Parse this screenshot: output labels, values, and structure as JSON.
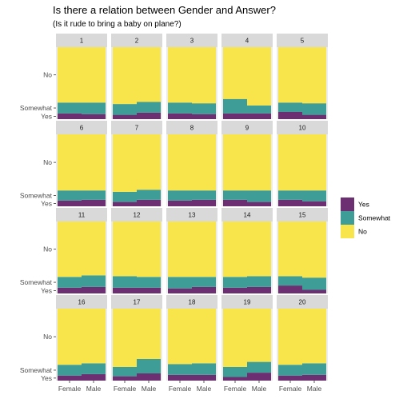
{
  "chart_data": {
    "type": "bar",
    "title": "Is there a relation between Gender and Answer?",
    "subtitle": "(Is it rude to bring a baby on plane?)",
    "categories": [
      "Female",
      "Male"
    ],
    "y_categories": [
      "Yes",
      "Somewhat",
      "No"
    ],
    "y_tick_labels": [
      "No",
      "Somewhat",
      "Yes"
    ],
    "stacked_proportion": true,
    "grid": false,
    "legend_position": "right",
    "colors": {
      "Yes": "#6b2f72",
      "Somewhat": "#3f9d98",
      "No": "#f7e54b"
    },
    "legend": [
      {
        "name": "Yes",
        "color": "#6b2f72"
      },
      {
        "name": "Somewhat",
        "color": "#3f9d98"
      },
      {
        "name": "No",
        "color": "#f7e54b"
      }
    ],
    "facets": [
      {
        "label": "1",
        "female": {
          "yes": 0.08,
          "somewhat": 0.15
        },
        "male": {
          "yes": 0.07,
          "somewhat": 0.16
        }
      },
      {
        "label": "2",
        "female": {
          "yes": 0.06,
          "somewhat": 0.15
        },
        "male": {
          "yes": 0.09,
          "somewhat": 0.15
        }
      },
      {
        "label": "3",
        "female": {
          "yes": 0.08,
          "somewhat": 0.15
        },
        "male": {
          "yes": 0.07,
          "somewhat": 0.15
        }
      },
      {
        "label": "4",
        "female": {
          "yes": 0.08,
          "somewhat": 0.2
        },
        "male": {
          "yes": 0.08,
          "somewhat": 0.11
        }
      },
      {
        "label": "5",
        "female": {
          "yes": 0.1,
          "somewhat": 0.13
        },
        "male": {
          "yes": 0.06,
          "somewhat": 0.16
        }
      },
      {
        "label": "6",
        "female": {
          "yes": 0.08,
          "somewhat": 0.14
        },
        "male": {
          "yes": 0.09,
          "somewhat": 0.13
        }
      },
      {
        "label": "7",
        "female": {
          "yes": 0.06,
          "somewhat": 0.14
        },
        "male": {
          "yes": 0.09,
          "somewhat": 0.14
        }
      },
      {
        "label": "8",
        "female": {
          "yes": 0.08,
          "somewhat": 0.14
        },
        "male": {
          "yes": 0.09,
          "somewhat": 0.13
        }
      },
      {
        "label": "9",
        "female": {
          "yes": 0.09,
          "somewhat": 0.13
        },
        "male": {
          "yes": 0.06,
          "somewhat": 0.16
        }
      },
      {
        "label": "10",
        "female": {
          "yes": 0.09,
          "somewhat": 0.13
        },
        "male": {
          "yes": 0.07,
          "somewhat": 0.15
        }
      },
      {
        "label": "11",
        "female": {
          "yes": 0.08,
          "somewhat": 0.15
        },
        "male": {
          "yes": 0.09,
          "somewhat": 0.16
        }
      },
      {
        "label": "12",
        "female": {
          "yes": 0.08,
          "somewhat": 0.16
        },
        "male": {
          "yes": 0.08,
          "somewhat": 0.15
        }
      },
      {
        "label": "13",
        "female": {
          "yes": 0.07,
          "somewhat": 0.16
        },
        "male": {
          "yes": 0.09,
          "somewhat": 0.14
        }
      },
      {
        "label": "14",
        "female": {
          "yes": 0.08,
          "somewhat": 0.15
        },
        "male": {
          "yes": 0.09,
          "somewhat": 0.15
        }
      },
      {
        "label": "15",
        "female": {
          "yes": 0.11,
          "somewhat": 0.13
        },
        "male": {
          "yes": 0.05,
          "somewhat": 0.17
        }
      },
      {
        "label": "16",
        "female": {
          "yes": 0.07,
          "somewhat": 0.15
        },
        "male": {
          "yes": 0.09,
          "somewhat": 0.15
        }
      },
      {
        "label": "17",
        "female": {
          "yes": 0.06,
          "somewhat": 0.13
        },
        "male": {
          "yes": 0.1,
          "somewhat": 0.2
        }
      },
      {
        "label": "18",
        "female": {
          "yes": 0.08,
          "somewhat": 0.15
        },
        "male": {
          "yes": 0.08,
          "somewhat": 0.16
        }
      },
      {
        "label": "19",
        "female": {
          "yes": 0.05,
          "somewhat": 0.14
        },
        "male": {
          "yes": 0.11,
          "somewhat": 0.15
        }
      },
      {
        "label": "20",
        "female": {
          "yes": 0.07,
          "somewhat": 0.15
        },
        "male": {
          "yes": 0.08,
          "somewhat": 0.16
        }
      }
    ]
  }
}
